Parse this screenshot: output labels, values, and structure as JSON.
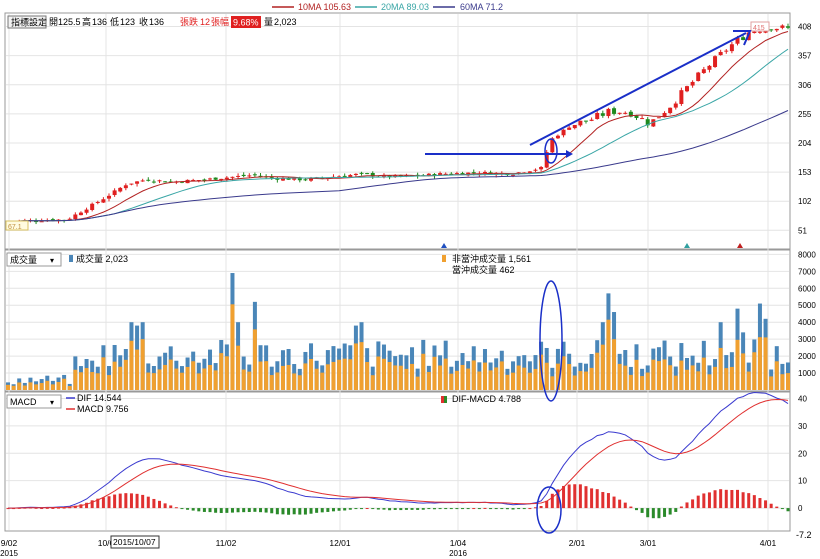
{
  "legend_top": {
    "ma10": {
      "label": "10MA 105.63",
      "color": "#b22222"
    },
    "ma20": {
      "label": "20MA 89.03",
      "color": "#3aa6a6"
    },
    "ma60": {
      "label": "60MA 71.2",
      "color": "#3a3a8c"
    }
  },
  "price_panel": {
    "settings_button": "指標設定",
    "ohlc": {
      "open_label": "開",
      "open": "125.5",
      "high_label": "高",
      "high": "136",
      "low_label": "低",
      "low": "123",
      "close_label": "收",
      "close": "136"
    },
    "change_label": "張跌",
    "change": "12",
    "pct_label": "張幅",
    "pct": "9.68%",
    "vol_label": "量",
    "vol": "2,023",
    "low_marker": "67.1",
    "high_marker": "415"
  },
  "volume_panel": {
    "selector": "成交量",
    "total_label": "成交量 2,023",
    "non_daytrade_label": "非當沖成交量 1,561",
    "daytrade_label": "當沖成交量 462",
    "colors": {
      "total": "#4a86b8",
      "non_daytrade": "#f0a030"
    }
  },
  "macd_panel": {
    "selector": "MACD",
    "dif_label": "DIF 14.544",
    "macd_label": "MACD 9.756",
    "osc_label": "DIF-MACD 4.788",
    "min_marker": "-7.2",
    "colors": {
      "dif": "#3a3acf",
      "macd": "#e03030",
      "pos": "#e03030",
      "neg": "#2a8a2a"
    }
  },
  "cursor_date": "2015/10/07",
  "x_axis": [
    {
      "label": "9/02",
      "sub": "2015"
    },
    {
      "label": "10/0",
      "sub": ""
    },
    {
      "label": "11/02",
      "sub": ""
    },
    {
      "label": "12/01",
      "sub": ""
    },
    {
      "label": "1/04",
      "sub": "2016"
    },
    {
      "label": "2/01",
      "sub": ""
    },
    {
      "label": "3/01",
      "sub": ""
    },
    {
      "label": "4/01",
      "sub": ""
    }
  ],
  "chart_data": [
    {
      "type": "candlestick",
      "y_ticks": [
        51,
        102,
        153,
        204,
        255,
        306,
        357,
        408
      ],
      "ylim": [
        20,
        430
      ],
      "series": [
        {
          "name": "10MA 105.63"
        },
        {
          "name": "20MA 89.03"
        },
        {
          "name": "60MA 71.2"
        }
      ]
    },
    {
      "type": "bar",
      "y_ticks": [
        1000,
        2000,
        3000,
        4000,
        5000,
        6000,
        7000,
        8000
      ],
      "ylim": [
        0,
        8200
      ],
      "series": [
        {
          "name": "成交量"
        },
        {
          "name": "非當沖成交量"
        },
        {
          "name": "當沖成交量"
        }
      ]
    },
    {
      "type": "line",
      "y_ticks": [
        0,
        10,
        20,
        30,
        40
      ],
      "ylim": [
        -8,
        42
      ],
      "series": [
        {
          "name": "DIF"
        },
        {
          "name": "MACD"
        },
        {
          "name": "DIF-MACD"
        }
      ]
    }
  ]
}
